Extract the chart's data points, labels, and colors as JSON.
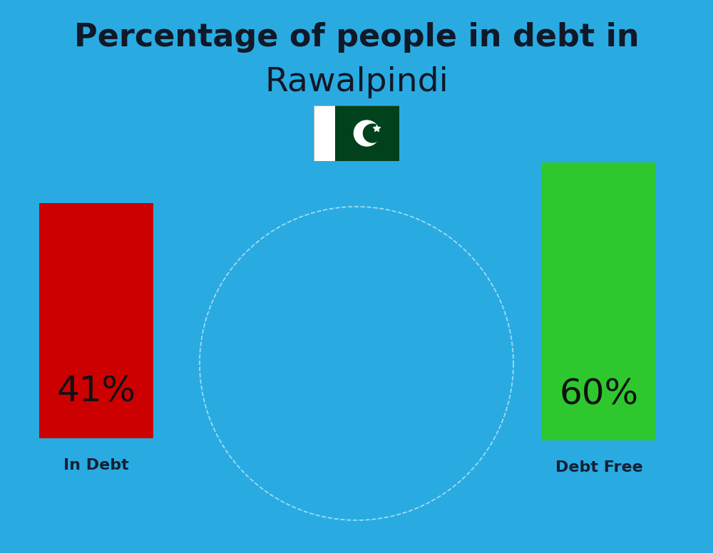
{
  "title_line1": "Percentage of people in debt in",
  "title_line2": "Rawalpindi",
  "title_color": "#111827",
  "title_fontsize1": 32,
  "title_fontsize2": 34,
  "background_color": "#29ABE2",
  "bar_left_label": "In Debt",
  "bar_left_color": "#CC0000",
  "bar_left_text": "41%",
  "bar_right_label": "Debt Free",
  "bar_right_color": "#2EC82E",
  "bar_right_text": "60%",
  "label_color": "#152035",
  "pct_fontsize": 36,
  "label_fontsize": 16,
  "flag_white": "#FFFFFF",
  "flag_green": "#01411C",
  "fig_width": 10.0,
  "fig_height": 7.76
}
